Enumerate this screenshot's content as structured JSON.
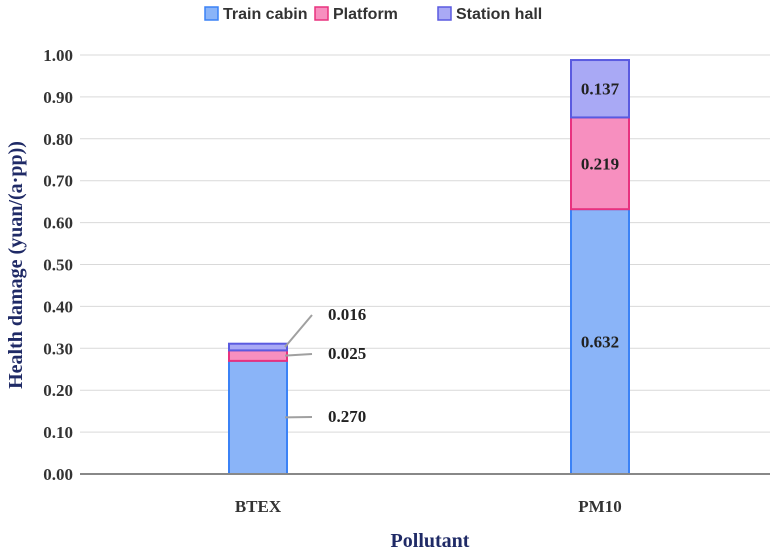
{
  "chart_data": {
    "type": "bar",
    "stacked": true,
    "categories": [
      "BTEX",
      "PM10"
    ],
    "series": [
      {
        "name": "Train cabin",
        "values": [
          0.27,
          0.632
        ],
        "labels": [
          "0.270",
          "0.632"
        ],
        "fill": "#8ab4f8",
        "stroke": "#3b82f6"
      },
      {
        "name": "Platform",
        "values": [
          0.025,
          0.219
        ],
        "labels": [
          "0.025",
          "0.219"
        ],
        "fill": "#f78fbf",
        "stroke": "#e8327f"
      },
      {
        "name": "Station hall",
        "values": [
          0.016,
          0.137
        ],
        "labels": [
          "0.016",
          "0.137"
        ],
        "fill": "#a9a9f5",
        "stroke": "#5a5ae0"
      }
    ],
    "xlabel": "Pollutant",
    "ylabel": "Health damage (yuan/(a·pp))",
    "ylim": [
      0,
      1.0
    ],
    "yticks": [
      "0.00",
      "0.10",
      "0.20",
      "0.30",
      "0.40",
      "0.50",
      "0.60",
      "0.70",
      "0.80",
      "0.90",
      "1.00"
    ],
    "legend_position": "top",
    "grid": true,
    "gridline_color": "#d9d9d9"
  }
}
